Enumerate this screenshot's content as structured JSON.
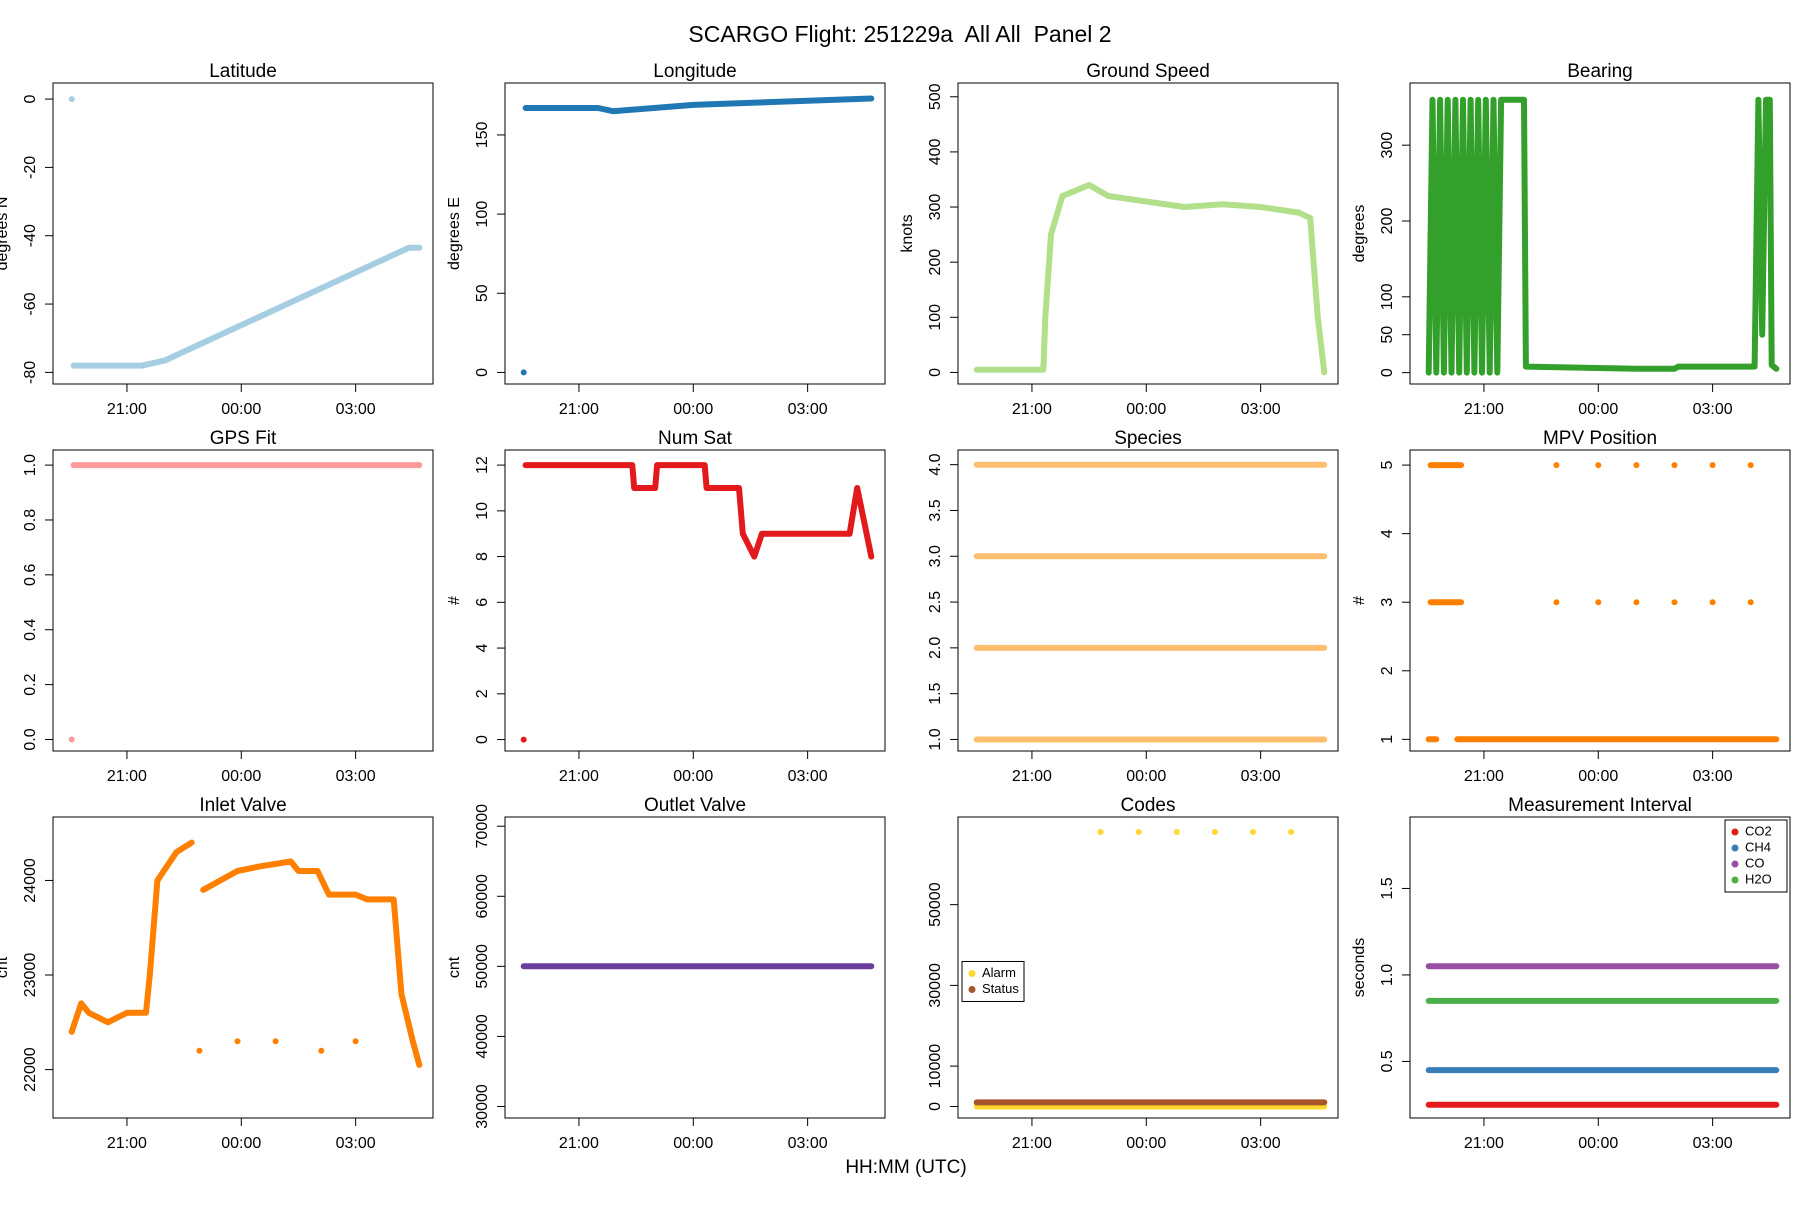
{
  "title": "SCARGO Flight: 251229a  All All  Panel 2",
  "xlabel": "HH:MM (UTC)",
  "chart_data": [
    {
      "type": "line",
      "title": "Latitude",
      "ylabel": "degrees N",
      "xlim": [
        19.06,
        29.03
      ],
      "xticks": [
        {
          "value": 21,
          "label": "21:00"
        },
        {
          "value": 24,
          "label": "00:00"
        },
        {
          "value": 27,
          "label": "03:00"
        }
      ],
      "ylim": [
        -83.4,
        4.7
      ],
      "yticks": [
        0,
        -20,
        -40,
        -60,
        -80
      ],
      "series": [
        {
          "color": "#a6cee3",
          "x": [
            19.55,
            19.57,
            19.6,
            21.4,
            22.0,
            28.4,
            28.67
          ],
          "values": [
            0,
            null,
            -78,
            -78,
            -76.5,
            -43.5,
            -43.5
          ]
        }
      ]
    },
    {
      "type": "line",
      "title": "Longitude",
      "ylabel": "degrees E",
      "xlim": [
        19.06,
        29.03
      ],
      "xticks": [
        {
          "value": 21,
          "label": "21:00"
        },
        {
          "value": 24,
          "label": "00:00"
        },
        {
          "value": 27,
          "label": "03:00"
        }
      ],
      "ylim": [
        -7.3,
        182.8
      ],
      "yticks": [
        0,
        50,
        100,
        150
      ],
      "series": [
        {
          "color": "#1f78b4",
          "x": [
            19.55,
            19.57,
            19.6,
            21.5,
            21.9,
            24.0,
            28.67
          ],
          "values": [
            0,
            null,
            167,
            167,
            165,
            169,
            173
          ]
        }
      ]
    },
    {
      "type": "line",
      "title": "Ground Speed",
      "ylabel": "knots",
      "xlim": [
        19.06,
        29.03
      ],
      "xticks": [
        {
          "value": 21,
          "label": "21:00"
        },
        {
          "value": 24,
          "label": "00:00"
        },
        {
          "value": 27,
          "label": "03:00"
        }
      ],
      "ylim": [
        -21,
        525
      ],
      "yticks": [
        0,
        100,
        200,
        300,
        400,
        500
      ],
      "series": [
        {
          "color": "#b2df8a",
          "x": [
            19.55,
            21.3,
            21.35,
            21.5,
            21.8,
            22.5,
            23.0,
            24.0,
            25.0,
            26.0,
            27.0,
            28.0,
            28.3,
            28.5,
            28.67
          ],
          "values": [
            5,
            5,
            100,
            250,
            320,
            340,
            320,
            310,
            300,
            305,
            300,
            290,
            280,
            100,
            0
          ]
        }
      ]
    },
    {
      "type": "line",
      "title": "Bearing",
      "ylabel": "degrees",
      "xlim": [
        19.06,
        29.03
      ],
      "xticks": [
        {
          "value": 21,
          "label": "21:00"
        },
        {
          "value": 24,
          "label": "00:00"
        },
        {
          "value": 27,
          "label": "03:00"
        }
      ],
      "ylim": [
        -15,
        382
      ],
      "yticks": [
        0,
        50,
        100,
        200,
        300
      ],
      "series": [
        {
          "color": "#33a02c",
          "x": [
            19.55,
            19.65,
            19.75,
            19.85,
            19.95,
            20.05,
            20.15,
            20.25,
            20.35,
            20.45,
            20.55,
            20.65,
            20.75,
            20.85,
            20.95,
            21.05,
            21.15,
            21.25,
            21.35,
            21.45,
            22.05,
            22.1,
            25.0,
            26.0,
            26.1,
            28.1,
            28.2,
            28.3,
            28.4,
            28.5,
            28.55,
            28.67
          ],
          "values": [
            0,
            360,
            0,
            360,
            0,
            360,
            0,
            360,
            0,
            360,
            0,
            360,
            0,
            360,
            0,
            360,
            0,
            360,
            0,
            360,
            360,
            8,
            5,
            5,
            8,
            8,
            360,
            50,
            360,
            360,
            10,
            5
          ]
        }
      ]
    },
    {
      "type": "line",
      "title": "GPS Fit",
      "xlim": [
        19.06,
        29.03
      ],
      "xticks": [
        {
          "value": 21,
          "label": "21:00"
        },
        {
          "value": 24,
          "label": "00:00"
        },
        {
          "value": 27,
          "label": "03:00"
        }
      ],
      "ylim": [
        -0.042,
        1.055
      ],
      "yticks": [
        {
          "value": 0,
          "label": "0.0"
        },
        0.2,
        0.4,
        0.6,
        0.8,
        {
          "value": 1,
          "label": "1.0"
        }
      ],
      "series": [
        {
          "color": "#fb9a99",
          "x": [
            19.55,
            19.57,
            19.6,
            28.67
          ],
          "values": [
            0,
            null,
            1,
            1
          ]
        }
      ]
    },
    {
      "type": "line",
      "title": "Num Sat",
      "ylabel": "#",
      "xlim": [
        19.06,
        29.03
      ],
      "xticks": [
        {
          "value": 21,
          "label": "21:00"
        },
        {
          "value": 24,
          "label": "00:00"
        },
        {
          "value": 27,
          "label": "03:00"
        }
      ],
      "ylim": [
        -0.5,
        12.66
      ],
      "yticks": [
        0,
        2,
        4,
        6,
        8,
        10,
        12
      ],
      "series": [
        {
          "color": "#e31a1c",
          "x": [
            19.55,
            19.57,
            19.6,
            22.4,
            22.45,
            23.0,
            23.05,
            24.3,
            24.35,
            25.2,
            25.3,
            25.6,
            25.8,
            26.8,
            27.0,
            28.1,
            28.2,
            28.3,
            28.67
          ],
          "values": [
            0,
            null,
            12,
            12,
            11,
            11,
            12,
            12,
            11,
            11,
            9,
            8,
            9,
            9,
            9,
            9,
            10,
            11,
            8
          ]
        }
      ]
    },
    {
      "type": "line",
      "title": "Species",
      "xlim": [
        19.06,
        29.03
      ],
      "xticks": [
        {
          "value": 21,
          "label": "21:00"
        },
        {
          "value": 24,
          "label": "00:00"
        },
        {
          "value": 27,
          "label": "03:00"
        }
      ],
      "ylim": [
        0.874,
        4.16
      ],
      "yticks": [
        {
          "value": 1,
          "label": "1.0"
        },
        1.5,
        {
          "value": 2,
          "label": "2.0"
        },
        2.5,
        {
          "value": 3,
          "label": "3.0"
        },
        3.5,
        {
          "value": 4,
          "label": "4.0"
        }
      ],
      "series": [
        {
          "color": "#fdbf6f",
          "x": [
            19.55,
            28.67
          ],
          "values": [
            1,
            1
          ]
        },
        {
          "color": "#fdbf6f",
          "x": [
            19.55,
            28.67
          ],
          "values": [
            2,
            2
          ]
        },
        {
          "color": "#fdbf6f",
          "x": [
            19.55,
            28.67
          ],
          "values": [
            3,
            3
          ]
        },
        {
          "color": "#fdbf6f",
          "x": [
            19.55,
            28.67
          ],
          "values": [
            4,
            4
          ]
        }
      ]
    },
    {
      "type": "line",
      "title": "MPV Position",
      "ylabel": "#",
      "xlim": [
        19.06,
        29.03
      ],
      "xticks": [
        {
          "value": 21,
          "label": "21:00"
        },
        {
          "value": 24,
          "label": "00:00"
        },
        {
          "value": 27,
          "label": "03:00"
        }
      ],
      "ylim": [
        0.83,
        5.22
      ],
      "yticks": [
        1,
        2,
        3,
        4,
        5
      ],
      "series": [
        {
          "color": "#ff7f00",
          "x": [
            19.55,
            19.75,
            20.0,
            20.3,
            28.67
          ],
          "values": [
            1,
            1,
            null,
            1,
            1
          ]
        },
        {
          "color": "#ff7f00",
          "x": [
            19.6,
            20.4,
            21.5,
            22.9,
            23.4,
            24.0,
            24.5,
            25.0,
            25.5,
            26.0,
            26.5,
            27.0,
            27.5,
            28.0
          ],
          "values": [
            5,
            5,
            null,
            5,
            null,
            5,
            null,
            5,
            null,
            5,
            null,
            5,
            null,
            5
          ]
        },
        {
          "color": "#ff7f00",
          "x": [
            19.6,
            20.4,
            21.5,
            22.9,
            23.4,
            24.0,
            24.5,
            25.0,
            25.5,
            26.0,
            26.5,
            27.0,
            27.5,
            28.0
          ],
          "values": [
            3,
            3,
            null,
            3,
            null,
            3,
            null,
            3,
            null,
            3,
            null,
            3,
            null,
            3
          ]
        }
      ]
    },
    {
      "type": "line",
      "title": "Inlet Valve",
      "ylabel": "cnt",
      "xlim": [
        19.06,
        29.03
      ],
      "xticks": [
        {
          "value": 21,
          "label": "21:00"
        },
        {
          "value": 24,
          "label": "00:00"
        },
        {
          "value": 27,
          "label": "03:00"
        }
      ],
      "ylim": [
        21488,
        24671
      ],
      "yticks": [
        22000,
        23000,
        24000
      ],
      "series": [
        {
          "color": "#ff7f00",
          "x": [
            19.55,
            19.8,
            20.0,
            20.5,
            21.0,
            21.5,
            21.6,
            21.8,
            22.3,
            22.7,
            22.8,
            23.0,
            23.9,
            24.5,
            25.3,
            25.5,
            26.0,
            26.3,
            27.0,
            27.3,
            28.0,
            28.2,
            28.5,
            28.67
          ],
          "values": [
            22400,
            22700,
            22600,
            22500,
            22600,
            22600,
            23000,
            24000,
            24300,
            24400,
            null,
            23900,
            24100,
            24150,
            24200,
            24100,
            24100,
            23850,
            23850,
            23800,
            23800,
            22800,
            22300,
            22050
          ]
        },
        {
          "color": "#ff7f00",
          "x": [
            22.9,
            23.3,
            23.9,
            24.4,
            24.9,
            25.3,
            26.1,
            26.6,
            27.0
          ],
          "values": [
            22200,
            null,
            22300,
            null,
            22300,
            null,
            22200,
            null,
            22300
          ]
        }
      ]
    },
    {
      "type": "line",
      "title": "Outlet Valve",
      "ylabel": "cnt",
      "xlim": [
        19.06,
        29.03
      ],
      "xticks": [
        {
          "value": 21,
          "label": "21:00"
        },
        {
          "value": 24,
          "label": "00:00"
        },
        {
          "value": 27,
          "label": "03:00"
        }
      ],
      "ylim": [
        28354,
        71317
      ],
      "yticks": [
        30000,
        40000,
        50000,
        60000,
        70000
      ],
      "series": [
        {
          "color": "#6a3d9a",
          "x": [
            19.55,
            28.67
          ],
          "values": [
            50000,
            50000
          ]
        }
      ]
    },
    {
      "type": "line",
      "title": "Codes",
      "legend": "left",
      "xlim": [
        19.06,
        29.03
      ],
      "xticks": [
        {
          "value": 21,
          "label": "21:00"
        },
        {
          "value": 24,
          "label": "00:00"
        },
        {
          "value": 27,
          "label": "03:00"
        }
      ],
      "ylim": [
        -2857,
        71714
      ],
      "yticks": [
        0,
        10000,
        30000,
        50000
      ],
      "series": [
        {
          "name": "Alarm",
          "color": "#ffd92f",
          "x": [
            19.55,
            28.67
          ],
          "values": [
            0,
            0
          ]
        },
        {
          "color": "#ffd92f",
          "x": [
            22.8,
            23.3,
            23.8,
            24.3,
            24.8,
            25.3,
            25.8,
            26.3,
            26.8,
            27.3,
            27.8
          ],
          "values": [
            68000,
            null,
            68000,
            null,
            68000,
            null,
            68000,
            null,
            68000,
            null,
            68000
          ]
        },
        {
          "name": "Status",
          "color": "#a65628",
          "x": [
            19.55,
            28.67
          ],
          "values": [
            1000,
            1000
          ]
        }
      ]
    },
    {
      "type": "line",
      "title": "Measurement Interval",
      "ylabel": "seconds",
      "legend": "topright",
      "xlim": [
        19.06,
        29.03
      ],
      "xticks": [
        {
          "value": 21,
          "label": "21:00"
        },
        {
          "value": 24,
          "label": "00:00"
        },
        {
          "value": 27,
          "label": "03:00"
        }
      ],
      "ylim": [
        0.173,
        1.913
      ],
      "yticks": [
        0.5,
        {
          "value": 1,
          "label": "1.0"
        },
        1.5
      ],
      "series": [
        {
          "name": "CO2",
          "color": "#e41a1c",
          "x": [
            19.55,
            28.67
          ],
          "values": [
            0.25,
            0.25
          ]
        },
        {
          "name": "CH4",
          "color": "#377eb8",
          "x": [
            19.55,
            28.67
          ],
          "values": [
            0.45,
            0.45
          ]
        },
        {
          "name": "CO",
          "color": "#984ea3",
          "x": [
            19.55,
            28.67
          ],
          "values": [
            1.05,
            1.05
          ]
        },
        {
          "name": "H2O",
          "color": "#4daf4a",
          "x": [
            19.55,
            28.67
          ],
          "values": [
            0.85,
            0.85
          ]
        }
      ]
    }
  ]
}
